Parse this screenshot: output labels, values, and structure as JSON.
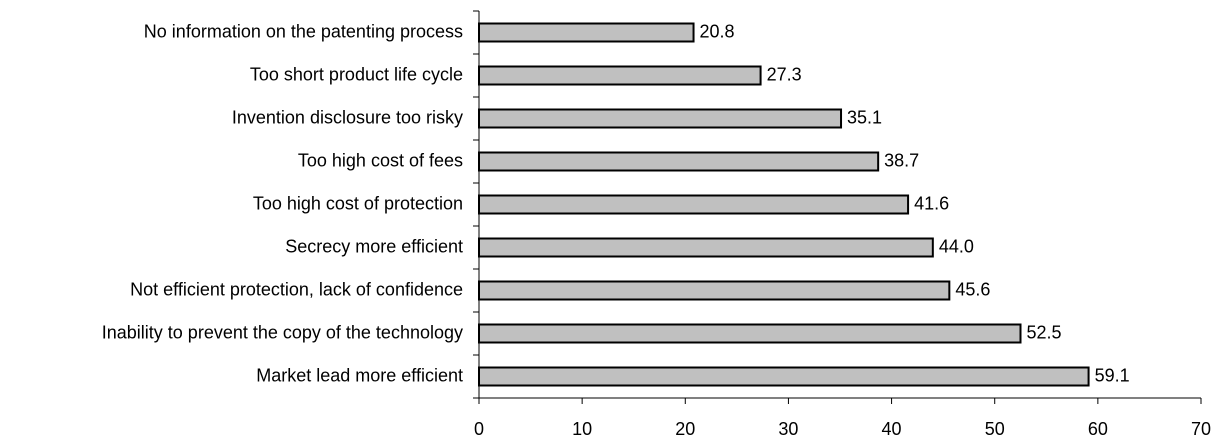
{
  "chart_data": {
    "type": "bar",
    "orientation": "horizontal",
    "categories": [
      "No information on the patenting process",
      "Too short product life cycle",
      "Invention disclosure too risky",
      "Too high cost of fees",
      "Too high cost of protection",
      "Secrecy more efficient",
      "Not efficient protection, lack of confidence",
      "Inability to prevent the copy of the technology",
      "Market lead more efficient"
    ],
    "values": [
      20.8,
      27.3,
      35.1,
      38.7,
      41.6,
      44.0,
      45.6,
      52.5,
      59.1
    ],
    "value_labels": [
      "20.8",
      "27.3",
      "35.1",
      "38.7",
      "41.6",
      "44.0",
      "45.6",
      "52.5",
      "59.1"
    ],
    "color": "#c0c0c0",
    "xlim": [
      0,
      70
    ],
    "xticks": [
      0,
      10,
      20,
      30,
      40,
      50,
      60,
      70
    ],
    "grid": false
  }
}
